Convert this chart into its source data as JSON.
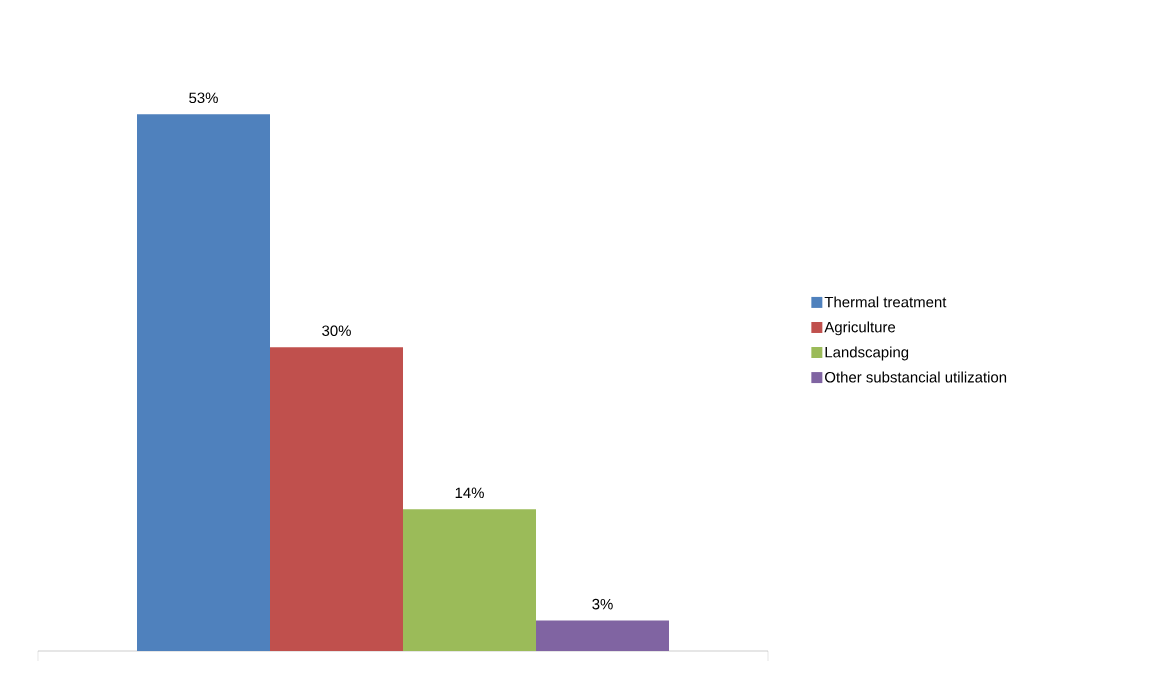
{
  "chart_data": {
    "type": "bar",
    "categories": [
      null
    ],
    "legend": "right",
    "series": [
      {
        "name": "Thermal treatment",
        "color": "#4f81bd",
        "values": [
          53
        ],
        "value_labels": [
          "53%"
        ]
      },
      {
        "name": "Agriculture",
        "color": "#c0504d",
        "values": [
          30
        ],
        "value_labels": [
          "30%"
        ]
      },
      {
        "name": "Landscaping",
        "color": "#9bbb59",
        "values": [
          14
        ],
        "value_labels": [
          "14%"
        ]
      },
      {
        "name": "Other substancial utilization",
        "color": "#8064a2",
        "values": [
          3
        ],
        "value_labels": [
          "3%"
        ]
      }
    ]
  }
}
